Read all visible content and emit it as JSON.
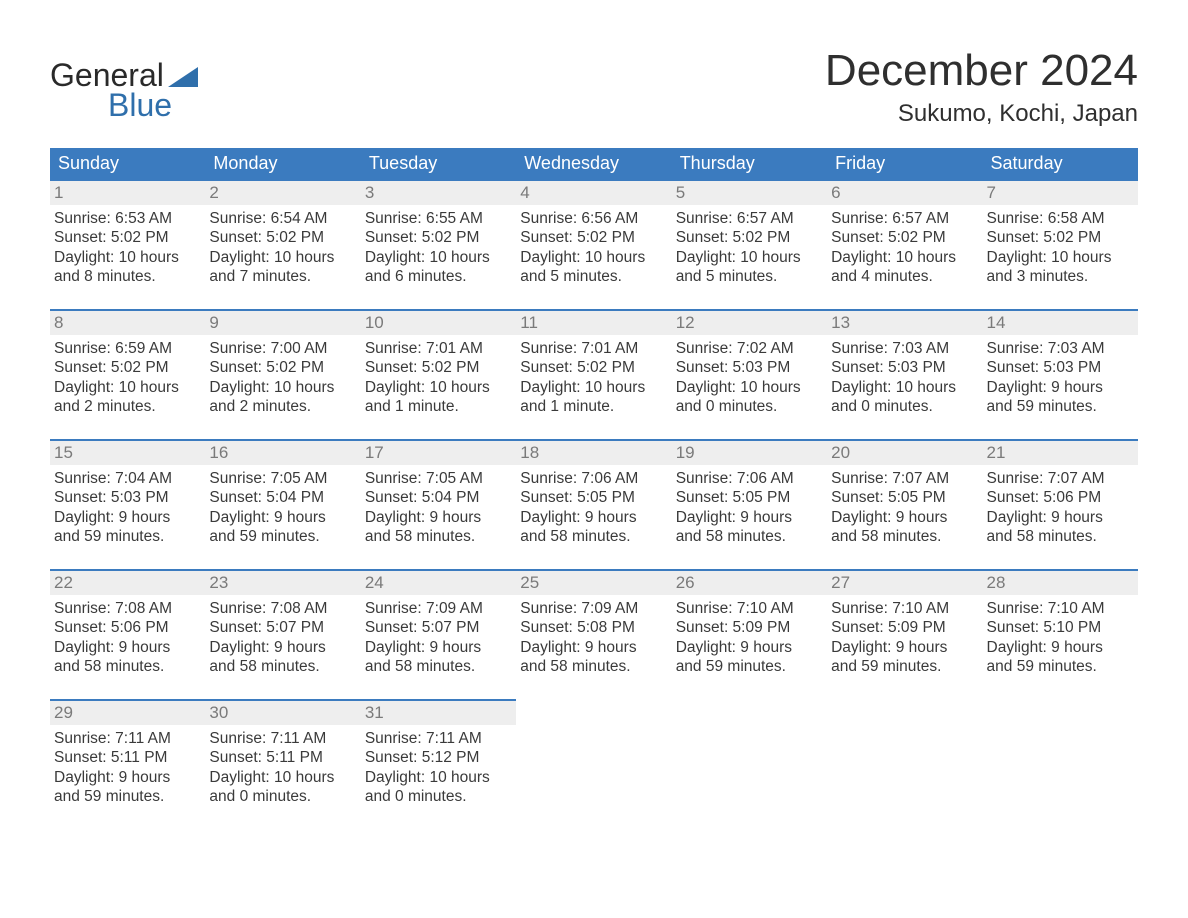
{
  "logo": {
    "text1": "General",
    "text2": "Blue",
    "color": "#2f6fab"
  },
  "title": {
    "month": "December 2024",
    "location": "Sukumo, Kochi, Japan"
  },
  "colors": {
    "header_bg": "#3b7bbf",
    "header_text": "#ffffff",
    "daynum_bg": "#eeeeee",
    "daynum_text": "#7a7a7a",
    "border": "#3b7bbf",
    "body_text": "#3a3a3a",
    "background": "#ffffff"
  },
  "typography": {
    "title_month_fontsize": 44,
    "title_location_fontsize": 24,
    "header_fontsize": 18,
    "daynum_fontsize": 17,
    "body_fontsize": 15.5,
    "logo_fontsize": 32
  },
  "calendar": {
    "weekdays": [
      "Sunday",
      "Monday",
      "Tuesday",
      "Wednesday",
      "Thursday",
      "Friday",
      "Saturday"
    ],
    "rows": 5,
    "cols": 7,
    "days": [
      {
        "n": "1",
        "sunrise": "6:53 AM",
        "sunset": "5:02 PM",
        "dl1": "10 hours",
        "dl2": "8 minutes."
      },
      {
        "n": "2",
        "sunrise": "6:54 AM",
        "sunset": "5:02 PM",
        "dl1": "10 hours",
        "dl2": "7 minutes."
      },
      {
        "n": "3",
        "sunrise": "6:55 AM",
        "sunset": "5:02 PM",
        "dl1": "10 hours",
        "dl2": "6 minutes."
      },
      {
        "n": "4",
        "sunrise": "6:56 AM",
        "sunset": "5:02 PM",
        "dl1": "10 hours",
        "dl2": "5 minutes."
      },
      {
        "n": "5",
        "sunrise": "6:57 AM",
        "sunset": "5:02 PM",
        "dl1": "10 hours",
        "dl2": "5 minutes."
      },
      {
        "n": "6",
        "sunrise": "6:57 AM",
        "sunset": "5:02 PM",
        "dl1": "10 hours",
        "dl2": "4 minutes."
      },
      {
        "n": "7",
        "sunrise": "6:58 AM",
        "sunset": "5:02 PM",
        "dl1": "10 hours",
        "dl2": "3 minutes."
      },
      {
        "n": "8",
        "sunrise": "6:59 AM",
        "sunset": "5:02 PM",
        "dl1": "10 hours",
        "dl2": "2 minutes."
      },
      {
        "n": "9",
        "sunrise": "7:00 AM",
        "sunset": "5:02 PM",
        "dl1": "10 hours",
        "dl2": "2 minutes."
      },
      {
        "n": "10",
        "sunrise": "7:01 AM",
        "sunset": "5:02 PM",
        "dl1": "10 hours",
        "dl2": "1 minute."
      },
      {
        "n": "11",
        "sunrise": "7:01 AM",
        "sunset": "5:02 PM",
        "dl1": "10 hours",
        "dl2": "1 minute."
      },
      {
        "n": "12",
        "sunrise": "7:02 AM",
        "sunset": "5:03 PM",
        "dl1": "10 hours",
        "dl2": "0 minutes."
      },
      {
        "n": "13",
        "sunrise": "7:03 AM",
        "sunset": "5:03 PM",
        "dl1": "10 hours",
        "dl2": "0 minutes."
      },
      {
        "n": "14",
        "sunrise": "7:03 AM",
        "sunset": "5:03 PM",
        "dl1": "9 hours",
        "dl2": "59 minutes."
      },
      {
        "n": "15",
        "sunrise": "7:04 AM",
        "sunset": "5:03 PM",
        "dl1": "9 hours",
        "dl2": "59 minutes."
      },
      {
        "n": "16",
        "sunrise": "7:05 AM",
        "sunset": "5:04 PM",
        "dl1": "9 hours",
        "dl2": "59 minutes."
      },
      {
        "n": "17",
        "sunrise": "7:05 AM",
        "sunset": "5:04 PM",
        "dl1": "9 hours",
        "dl2": "58 minutes."
      },
      {
        "n": "18",
        "sunrise": "7:06 AM",
        "sunset": "5:05 PM",
        "dl1": "9 hours",
        "dl2": "58 minutes."
      },
      {
        "n": "19",
        "sunrise": "7:06 AM",
        "sunset": "5:05 PM",
        "dl1": "9 hours",
        "dl2": "58 minutes."
      },
      {
        "n": "20",
        "sunrise": "7:07 AM",
        "sunset": "5:05 PM",
        "dl1": "9 hours",
        "dl2": "58 minutes."
      },
      {
        "n": "21",
        "sunrise": "7:07 AM",
        "sunset": "5:06 PM",
        "dl1": "9 hours",
        "dl2": "58 minutes."
      },
      {
        "n": "22",
        "sunrise": "7:08 AM",
        "sunset": "5:06 PM",
        "dl1": "9 hours",
        "dl2": "58 minutes."
      },
      {
        "n": "23",
        "sunrise": "7:08 AM",
        "sunset": "5:07 PM",
        "dl1": "9 hours",
        "dl2": "58 minutes."
      },
      {
        "n": "24",
        "sunrise": "7:09 AM",
        "sunset": "5:07 PM",
        "dl1": "9 hours",
        "dl2": "58 minutes."
      },
      {
        "n": "25",
        "sunrise": "7:09 AM",
        "sunset": "5:08 PM",
        "dl1": "9 hours",
        "dl2": "58 minutes."
      },
      {
        "n": "26",
        "sunrise": "7:10 AM",
        "sunset": "5:09 PM",
        "dl1": "9 hours",
        "dl2": "59 minutes."
      },
      {
        "n": "27",
        "sunrise": "7:10 AM",
        "sunset": "5:09 PM",
        "dl1": "9 hours",
        "dl2": "59 minutes."
      },
      {
        "n": "28",
        "sunrise": "7:10 AM",
        "sunset": "5:10 PM",
        "dl1": "9 hours",
        "dl2": "59 minutes."
      },
      {
        "n": "29",
        "sunrise": "7:11 AM",
        "sunset": "5:11 PM",
        "dl1": "9 hours",
        "dl2": "59 minutes."
      },
      {
        "n": "30",
        "sunrise": "7:11 AM",
        "sunset": "5:11 PM",
        "dl1": "10 hours",
        "dl2": "0 minutes."
      },
      {
        "n": "31",
        "sunrise": "7:11 AM",
        "sunset": "5:12 PM",
        "dl1": "10 hours",
        "dl2": "0 minutes."
      },
      {
        "n": "",
        "empty": true
      },
      {
        "n": "",
        "empty": true
      },
      {
        "n": "",
        "empty": true
      },
      {
        "n": "",
        "empty": true
      }
    ],
    "labels": {
      "sunrise_prefix": "Sunrise: ",
      "sunset_prefix": "Sunset: ",
      "daylight_prefix": "Daylight: ",
      "and_word": "and "
    }
  }
}
